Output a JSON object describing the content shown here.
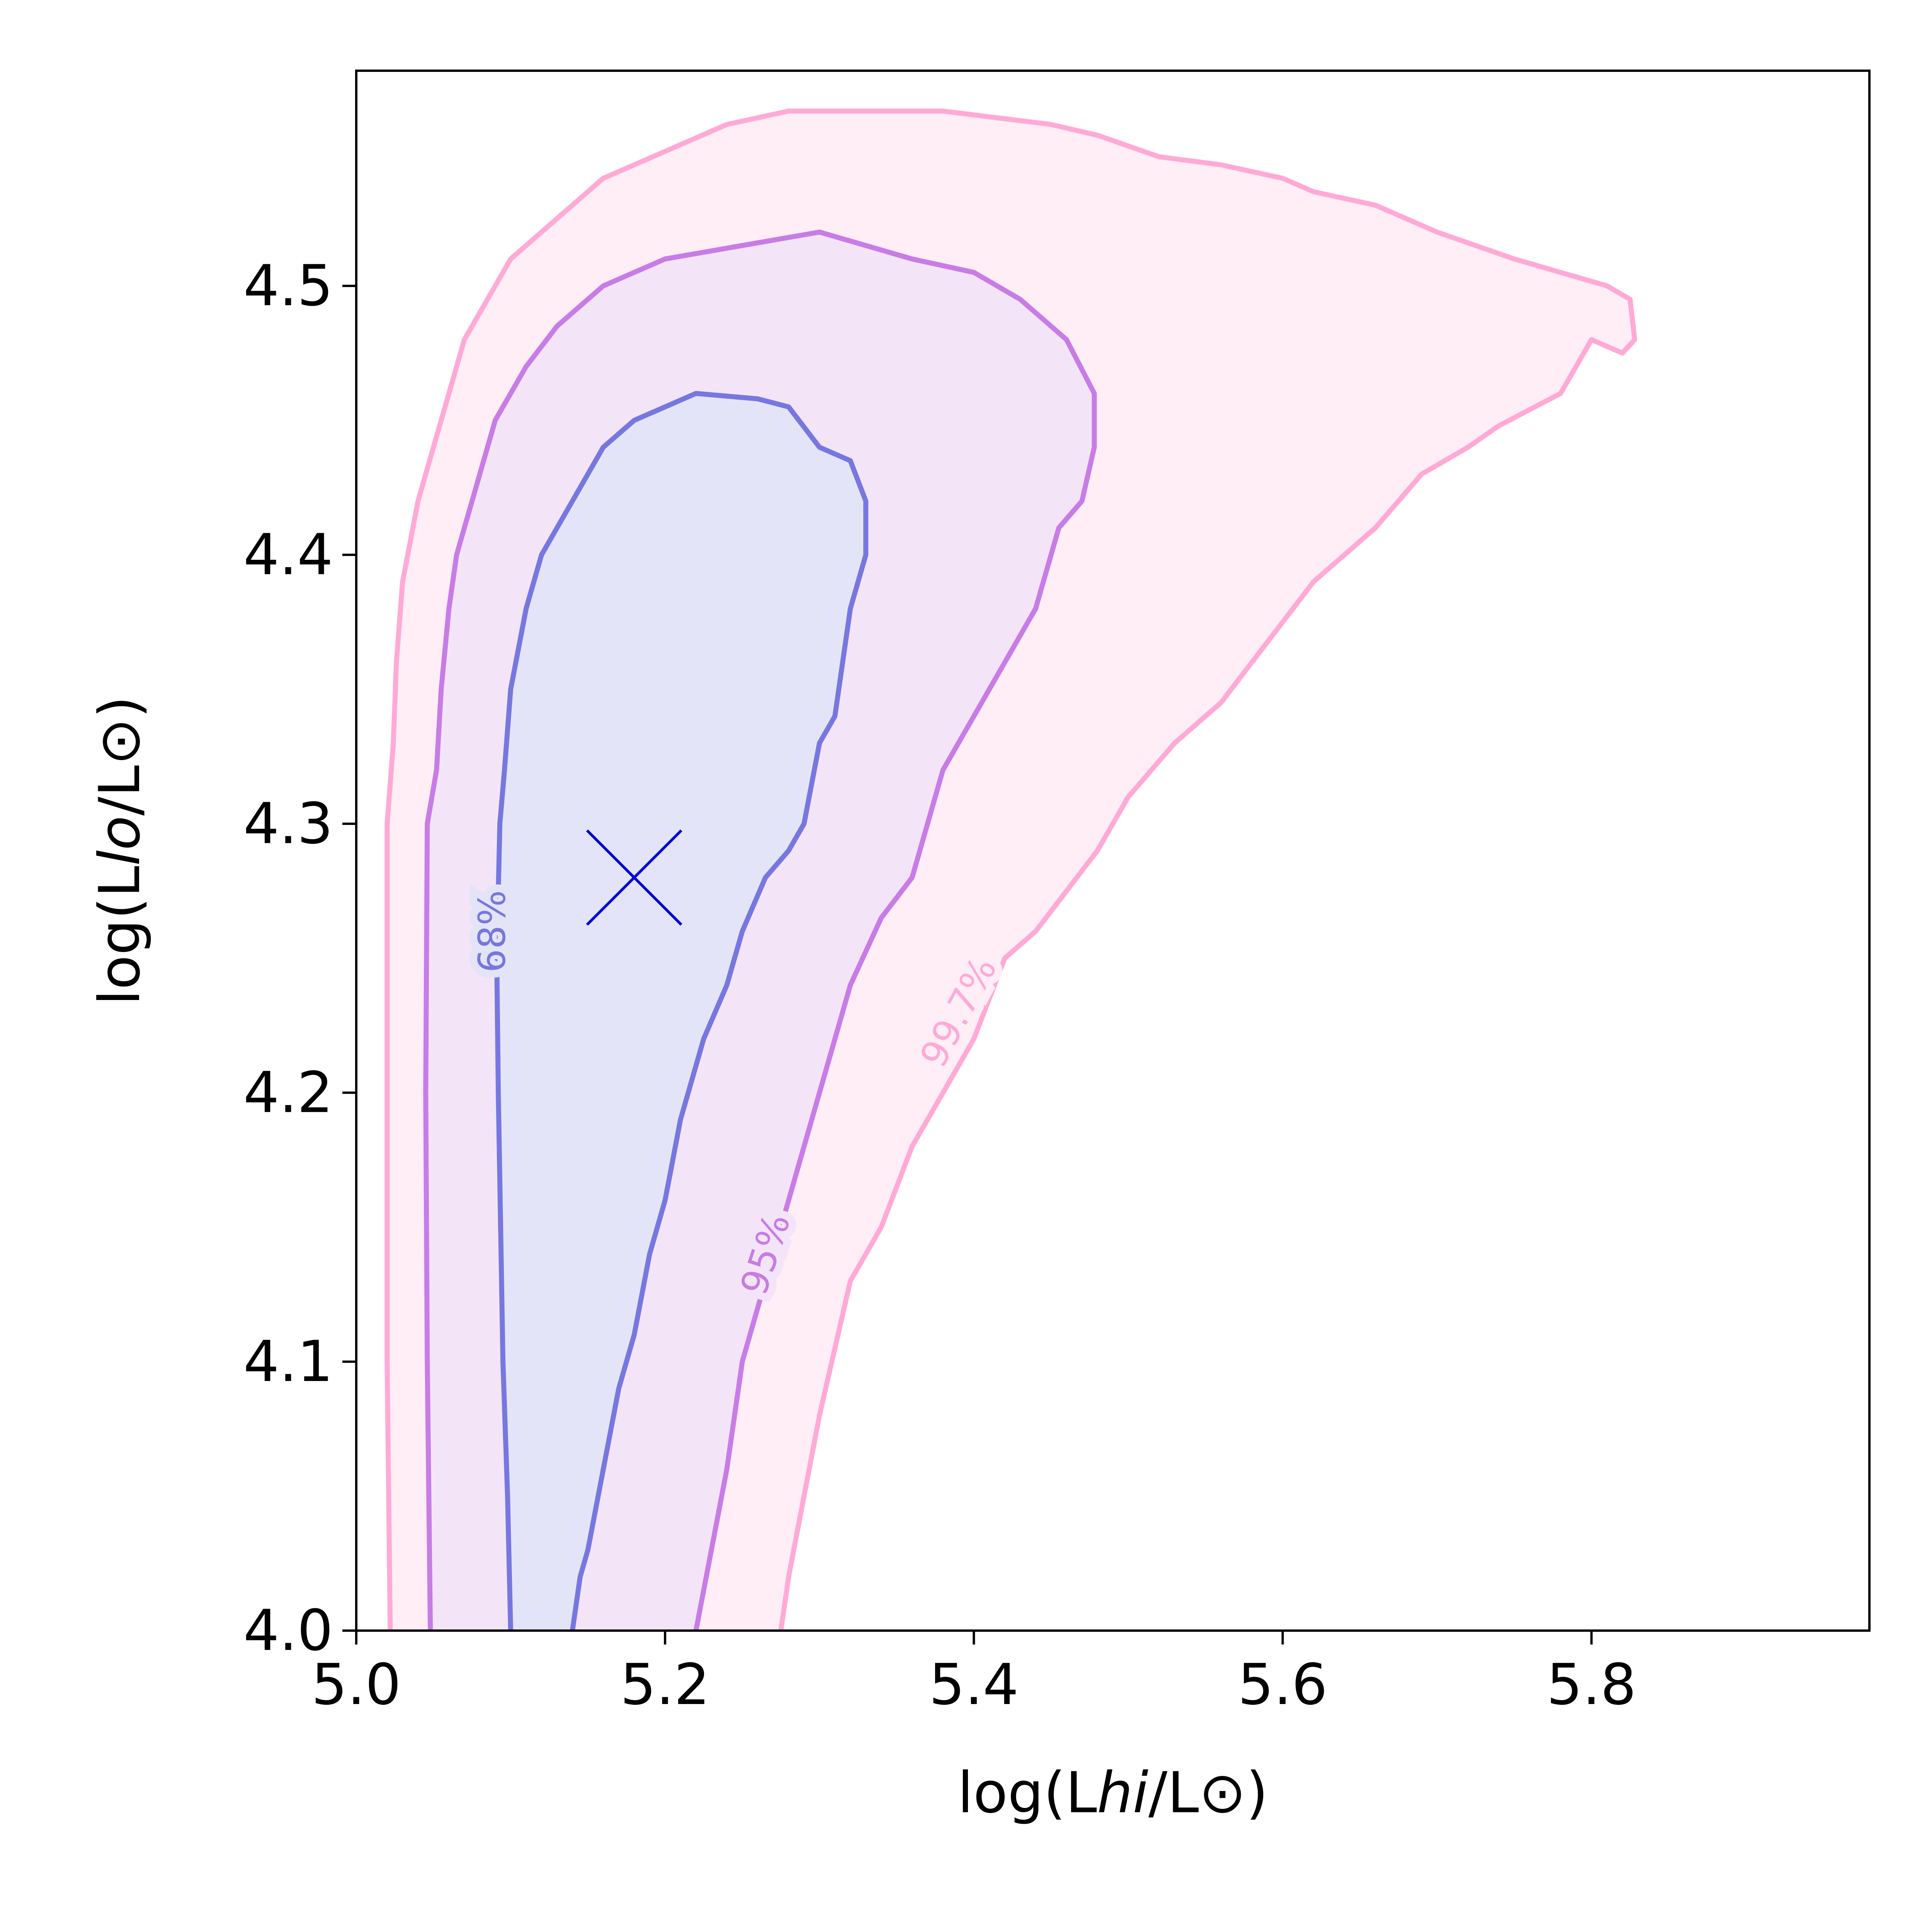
{
  "chart_data": {
    "type": "contour",
    "xlabel": {
      "prefix": "log(L",
      "sub": "hi",
      "suffix": "/L⊙)"
    },
    "ylabel": {
      "prefix": "log(L",
      "sub": "lo",
      "suffix": "/L⊙)"
    },
    "xlim": [
      5.0,
      5.98
    ],
    "ylim": [
      4.0,
      4.58
    ],
    "xticks": [
      {
        "value": 5.0,
        "label": "5.0"
      },
      {
        "value": 5.2,
        "label": "5.2"
      },
      {
        "value": 5.4,
        "label": "5.4"
      },
      {
        "value": 5.6,
        "label": "5.6"
      },
      {
        "value": 5.8,
        "label": "5.8"
      }
    ],
    "yticks": [
      {
        "value": 4.0,
        "label": "4.0"
      },
      {
        "value": 4.1,
        "label": "4.1"
      },
      {
        "value": 4.2,
        "label": "4.2"
      },
      {
        "value": 4.3,
        "label": "4.3"
      },
      {
        "value": 4.4,
        "label": "4.4"
      },
      {
        "value": 4.5,
        "label": "4.5"
      }
    ],
    "grid": false,
    "marker": {
      "x": 5.18,
      "y": 4.28,
      "symbol": "x",
      "color": "#0000dd"
    },
    "contours": [
      {
        "level": "99.7%",
        "label": "99.7%",
        "line_color": "#ffaad6",
        "fill_color": "#ffeef6",
        "label_at": {
          "x": 5.39,
          "y": 4.23
        },
        "label_angle": -62,
        "points": [
          [
            5.022,
            4.0
          ],
          [
            5.02,
            4.1
          ],
          [
            5.02,
            4.2
          ],
          [
            5.02,
            4.3
          ],
          [
            5.024,
            4.33
          ],
          [
            5.026,
            4.36
          ],
          [
            5.03,
            4.39
          ],
          [
            5.04,
            4.42
          ],
          [
            5.05,
            4.44
          ],
          [
            5.06,
            4.46
          ],
          [
            5.07,
            4.48
          ],
          [
            5.08,
            4.49
          ],
          [
            5.09,
            4.5
          ],
          [
            5.1,
            4.51
          ],
          [
            5.12,
            4.52
          ],
          [
            5.14,
            4.53
          ],
          [
            5.16,
            4.54
          ],
          [
            5.2,
            4.55
          ],
          [
            5.24,
            4.56
          ],
          [
            5.28,
            4.565
          ],
          [
            5.32,
            4.565
          ],
          [
            5.38,
            4.565
          ],
          [
            5.45,
            4.56
          ],
          [
            5.48,
            4.556
          ],
          [
            5.52,
            4.548
          ],
          [
            5.56,
            4.545
          ],
          [
            5.6,
            4.54
          ],
          [
            5.62,
            4.535
          ],
          [
            5.66,
            4.53
          ],
          [
            5.7,
            4.52
          ],
          [
            5.75,
            4.51
          ],
          [
            5.78,
            4.505
          ],
          [
            5.81,
            4.5
          ],
          [
            5.825,
            4.495
          ],
          [
            5.828,
            4.48
          ],
          [
            5.82,
            4.475
          ],
          [
            5.8,
            4.48
          ],
          [
            5.78,
            4.46
          ],
          [
            5.74,
            4.448
          ],
          [
            5.72,
            4.44
          ],
          [
            5.69,
            4.43
          ],
          [
            5.66,
            4.41
          ],
          [
            5.62,
            4.39
          ],
          [
            5.58,
            4.36
          ],
          [
            5.56,
            4.345
          ],
          [
            5.53,
            4.33
          ],
          [
            5.5,
            4.31
          ],
          [
            5.48,
            4.29
          ],
          [
            5.44,
            4.26
          ],
          [
            5.42,
            4.25
          ],
          [
            5.4,
            4.22
          ],
          [
            5.36,
            4.18
          ],
          [
            5.34,
            4.15
          ],
          [
            5.32,
            4.13
          ],
          [
            5.3,
            4.08
          ],
          [
            5.29,
            4.05
          ],
          [
            5.28,
            4.02
          ],
          [
            5.275,
            4.0
          ]
        ]
      },
      {
        "level": "95%",
        "label": "95%",
        "line_color": "#c77ce6",
        "fill_color": "#f4e4f8",
        "label_at": {
          "x": 5.265,
          "y": 4.14
        },
        "label_angle": -72,
        "points": [
          [
            5.048,
            4.0
          ],
          [
            5.046,
            4.1
          ],
          [
            5.045,
            4.2
          ],
          [
            5.046,
            4.3
          ],
          [
            5.052,
            4.32
          ],
          [
            5.055,
            4.35
          ],
          [
            5.06,
            4.38
          ],
          [
            5.065,
            4.4
          ],
          [
            5.08,
            4.43
          ],
          [
            5.09,
            4.45
          ],
          [
            5.11,
            4.47
          ],
          [
            5.13,
            4.485
          ],
          [
            5.16,
            4.5
          ],
          [
            5.2,
            4.51
          ],
          [
            5.25,
            4.515
          ],
          [
            5.3,
            4.52
          ],
          [
            5.36,
            4.51
          ],
          [
            5.4,
            4.505
          ],
          [
            5.43,
            4.495
          ],
          [
            5.46,
            4.48
          ],
          [
            5.478,
            4.46
          ],
          [
            5.478,
            4.44
          ],
          [
            5.47,
            4.42
          ],
          [
            5.455,
            4.41
          ],
          [
            5.44,
            4.38
          ],
          [
            5.42,
            4.36
          ],
          [
            5.4,
            4.34
          ],
          [
            5.38,
            4.32
          ],
          [
            5.36,
            4.28
          ],
          [
            5.34,
            4.265
          ],
          [
            5.32,
            4.24
          ],
          [
            5.3,
            4.2
          ],
          [
            5.28,
            4.16
          ],
          [
            5.27,
            4.14
          ],
          [
            5.25,
            4.1
          ],
          [
            5.24,
            4.06
          ],
          [
            5.23,
            4.03
          ],
          [
            5.22,
            4.0
          ]
        ]
      },
      {
        "level": "68%",
        "label": "68%",
        "line_color": "#7777e0",
        "fill_color": "#e4e4f8",
        "label_at": {
          "x": 5.088,
          "y": 4.26
        },
        "label_angle": -90,
        "points": [
          [
            5.1,
            4.0
          ],
          [
            5.098,
            4.05
          ],
          [
            5.095,
            4.1
          ],
          [
            5.092,
            4.2
          ],
          [
            5.091,
            4.25
          ],
          [
            5.093,
            4.3
          ],
          [
            5.096,
            4.32
          ],
          [
            5.1,
            4.35
          ],
          [
            5.11,
            4.38
          ],
          [
            5.12,
            4.4
          ],
          [
            5.14,
            4.42
          ],
          [
            5.16,
            4.44
          ],
          [
            5.18,
            4.45
          ],
          [
            5.2,
            4.455
          ],
          [
            5.22,
            4.46
          ],
          [
            5.26,
            4.458
          ],
          [
            5.28,
            4.455
          ],
          [
            5.3,
            4.44
          ],
          [
            5.32,
            4.435
          ],
          [
            5.33,
            4.42
          ],
          [
            5.33,
            4.4
          ],
          [
            5.32,
            4.38
          ],
          [
            5.315,
            4.36
          ],
          [
            5.31,
            4.34
          ],
          [
            5.3,
            4.33
          ],
          [
            5.29,
            4.3
          ],
          [
            5.28,
            4.29
          ],
          [
            5.265,
            4.28
          ],
          [
            5.25,
            4.26
          ],
          [
            5.24,
            4.24
          ],
          [
            5.225,
            4.22
          ],
          [
            5.21,
            4.19
          ],
          [
            5.2,
            4.16
          ],
          [
            5.19,
            4.14
          ],
          [
            5.18,
            4.11
          ],
          [
            5.17,
            4.09
          ],
          [
            5.16,
            4.06
          ],
          [
            5.15,
            4.03
          ],
          [
            5.145,
            4.02
          ],
          [
            5.14,
            4.0
          ]
        ]
      }
    ]
  }
}
